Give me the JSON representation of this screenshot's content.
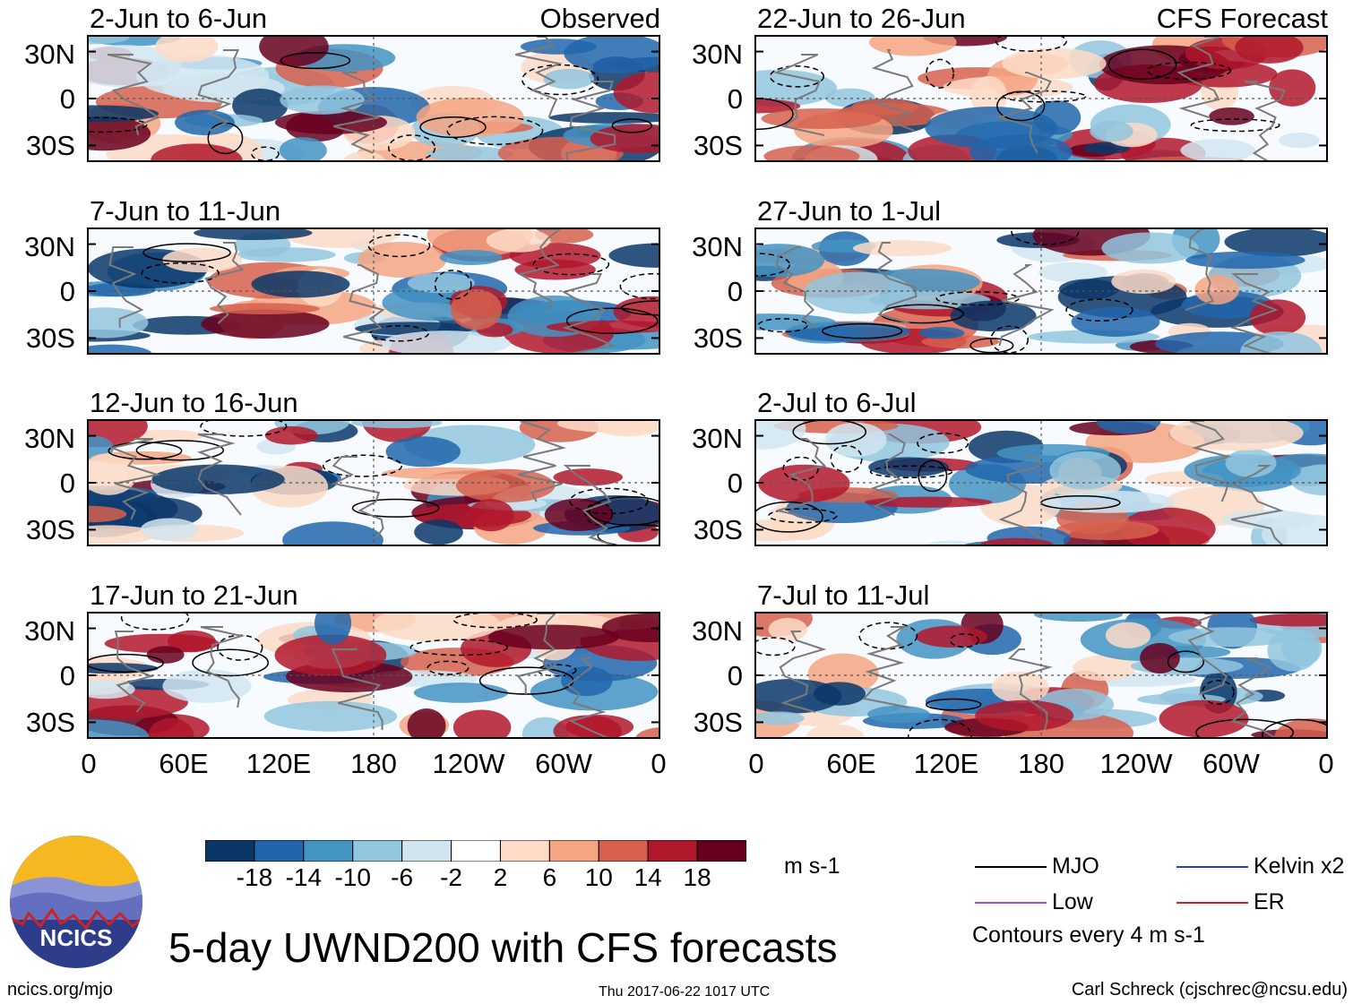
{
  "chart_data": {
    "type": "heatmap",
    "title": "5-day UWND200 with CFS forecasts",
    "variable": "UWND200",
    "units": "m s-1",
    "x_ticks": [
      "0",
      "60E",
      "120E",
      "180",
      "120W",
      "60W",
      "0"
    ],
    "y_ticks": [
      "30N",
      "0",
      "30S"
    ],
    "colorbar": {
      "labels": [
        "-18",
        "-14",
        "-10",
        "-6",
        "-2",
        "2",
        "6",
        "10",
        "14",
        "18"
      ],
      "colors": [
        "#0b3768",
        "#2166ac",
        "#4393c3",
        "#92c5de",
        "#d1e5f0",
        "#ffffff",
        "#fddbc7",
        "#f4a582",
        "#d6604d",
        "#b2182b",
        "#67001f"
      ]
    },
    "contour_interval_text": "Contours every 4 m s-1",
    "legend": [
      {
        "label": "MJO",
        "color": "#000000"
      },
      {
        "label": "Kelvin x2",
        "color": "#1f3bd6"
      },
      {
        "label": "Low",
        "color": "#a64ad8"
      },
      {
        "label": "ER",
        "color": "#d81e1e"
      }
    ],
    "panels": [
      {
        "period": "2-Jun to 6-Jun",
        "label": "Observed",
        "column": "left"
      },
      {
        "period": "7-Jun to 11-Jun",
        "label": "",
        "column": "left"
      },
      {
        "period": "12-Jun to 16-Jun",
        "label": "",
        "column": "left"
      },
      {
        "period": "17-Jun to 21-Jun",
        "label": "",
        "column": "left"
      },
      {
        "period": "22-Jun to 26-Jun",
        "label": "CFS Forecast",
        "column": "right"
      },
      {
        "period": "27-Jun to 1-Jul",
        "label": "",
        "column": "right"
      },
      {
        "period": "2-Jul to 6-Jul",
        "label": "",
        "column": "right"
      },
      {
        "period": "7-Jul to 11-Jul",
        "label": "",
        "column": "right"
      }
    ]
  },
  "footer": {
    "logo_text": "NCICS",
    "url": "ncics.org/mjo",
    "timestamp": "Thu 2017-06-22 1017 UTC",
    "author": "Carl Schreck (cjschrec@ncsu.edu)"
  }
}
